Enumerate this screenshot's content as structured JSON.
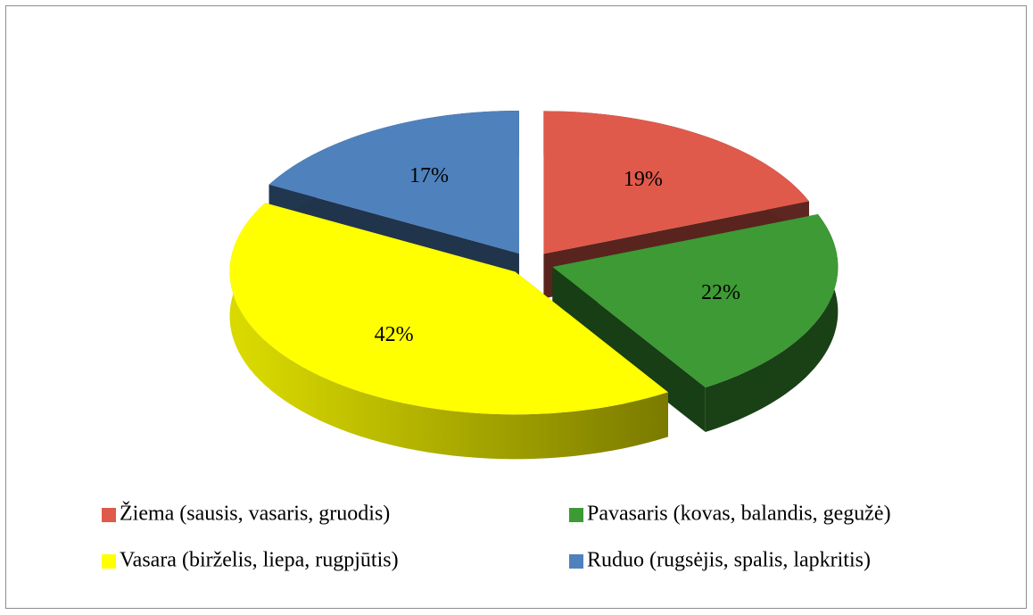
{
  "chart_data": {
    "type": "pie",
    "categories": [
      "Žiema (sausis, vasaris, gruodis)",
      "Pavasaris (kovas, balandis, gegužė)",
      "Vasara (birželis, liepa, rugpjūtis)",
      "Ruduo (rugsėjis, spalis, lapkritis)"
    ],
    "values": [
      19,
      22,
      42,
      17
    ],
    "value_labels": [
      "19%",
      "22%",
      "42%",
      "17%"
    ],
    "colors": [
      "#df5a4b",
      "#3d9a34",
      "#ffff00",
      "#4f81bd"
    ],
    "legend": "bottom"
  }
}
